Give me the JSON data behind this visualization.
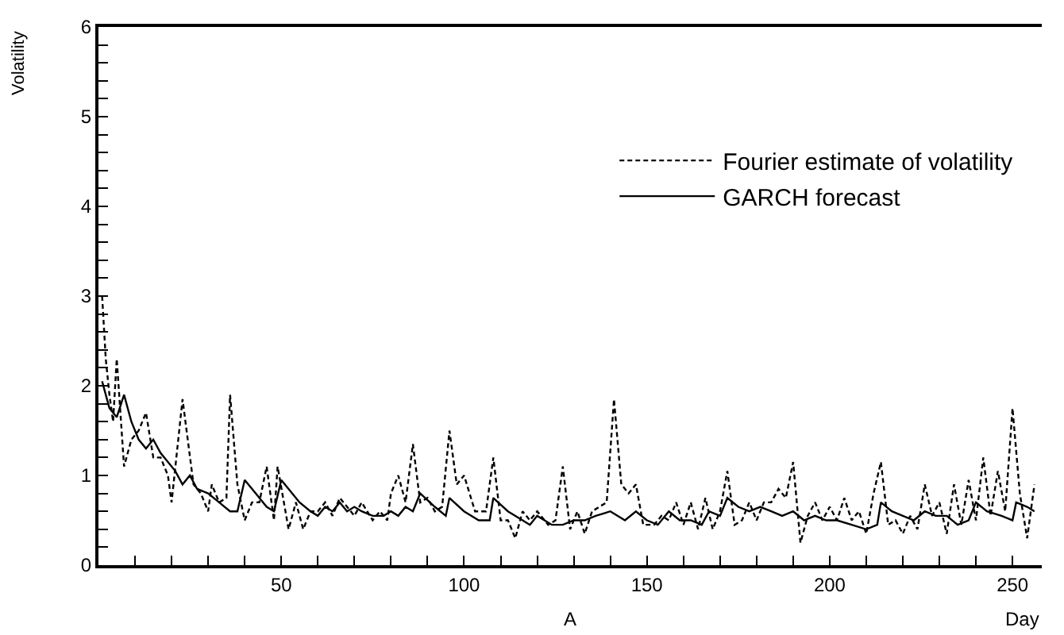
{
  "chart_data": {
    "type": "line",
    "xlabel": "Day",
    "ylabel": "Volatility",
    "annotations": [
      "A"
    ],
    "xlim": [
      0,
      258
    ],
    "ylim": [
      0,
      6
    ],
    "xticks": [
      {
        "value": 10,
        "label": null
      },
      {
        "value": 20,
        "label": null
      },
      {
        "value": 30,
        "label": null
      },
      {
        "value": 40,
        "label": null
      },
      50,
      {
        "value": 60,
        "label": null
      },
      {
        "value": 70,
        "label": null
      },
      {
        "value": 80,
        "label": null
      },
      {
        "value": 90,
        "label": null
      },
      100,
      {
        "value": 110,
        "label": null
      },
      {
        "value": 120,
        "label": null
      },
      {
        "value": 130,
        "label": null
      },
      {
        "value": 140,
        "label": null
      },
      150,
      {
        "value": 160,
        "label": null
      },
      {
        "value": 170,
        "label": null
      },
      {
        "value": 180,
        "label": null
      },
      {
        "value": 190,
        "label": null
      },
      200,
      {
        "value": 210,
        "label": null
      },
      {
        "value": 220,
        "label": null
      },
      {
        "value": 230,
        "label": null
      },
      {
        "value": 240,
        "label": null
      },
      250
    ],
    "yticks": [
      0,
      {
        "value": 0.2,
        "label": null
      },
      {
        "value": 0.4,
        "label": null
      },
      {
        "value": 0.6,
        "label": null
      },
      {
        "value": 0.8,
        "label": null
      },
      1,
      {
        "value": 1.2,
        "label": null
      },
      {
        "value": 1.4,
        "label": null
      },
      {
        "value": 1.6,
        "label": null
      },
      {
        "value": 1.8,
        "label": null
      },
      2,
      {
        "value": 2.2,
        "label": null
      },
      {
        "value": 2.4,
        "label": null
      },
      {
        "value": 2.6,
        "label": null
      },
      {
        "value": 2.8,
        "label": null
      },
      3,
      {
        "value": 3.2,
        "label": null
      },
      {
        "value": 3.4,
        "label": null
      },
      {
        "value": 3.6,
        "label": null
      },
      {
        "value": 3.8,
        "label": null
      },
      4,
      {
        "value": 4.2,
        "label": null
      },
      {
        "value": 4.4,
        "label": null
      },
      {
        "value": 4.6,
        "label": null
      },
      {
        "value": 4.8,
        "label": null
      },
      5,
      {
        "value": 5.2,
        "label": null
      },
      {
        "value": 5.4,
        "label": null
      },
      {
        "value": 5.6,
        "label": null
      },
      {
        "value": 5.8,
        "label": null
      },
      6
    ],
    "legend": "top right",
    "marker": "none",
    "series": [
      {
        "name": "Fourier estimate of volatility",
        "color": "#000000",
        "line_style": "dashed",
        "x": [
          1,
          2,
          3,
          4,
          5,
          7,
          9,
          11,
          13,
          15,
          17,
          19,
          20,
          23,
          26,
          28,
          30,
          31,
          33,
          35,
          36,
          38,
          40,
          42,
          44,
          46,
          48,
          49,
          52,
          54,
          56,
          58,
          60,
          62,
          64,
          66,
          68,
          70,
          72,
          75,
          77,
          79,
          80,
          82,
          84,
          86,
          88,
          90,
          92,
          94,
          96,
          98,
          100,
          103,
          106,
          108,
          110,
          112,
          114,
          116,
          118,
          120,
          123,
          125,
          127,
          129,
          131,
          133,
          135,
          137,
          139,
          141,
          143,
          145,
          147,
          149,
          152,
          154,
          156,
          158,
          160,
          162,
          164,
          166,
          168,
          170,
          172,
          174,
          176,
          178,
          180,
          182,
          184,
          186,
          188,
          190,
          192,
          194,
          196,
          198,
          200,
          202,
          204,
          206,
          208,
          210,
          212,
          214,
          216,
          218,
          220,
          222,
          224,
          226,
          228,
          230,
          232,
          234,
          236,
          238,
          240,
          242,
          244,
          246,
          248,
          250,
          252,
          254,
          256
        ],
        "values": [
          3.0,
          2.3,
          1.9,
          1.6,
          2.3,
          1.1,
          1.4,
          1.5,
          1.7,
          1.2,
          1.2,
          1.0,
          0.7,
          1.85,
          0.9,
          0.8,
          0.6,
          0.9,
          0.7,
          0.75,
          1.9,
          0.9,
          0.5,
          0.7,
          0.7,
          1.1,
          0.5,
          1.1,
          0.4,
          0.7,
          0.4,
          0.6,
          0.6,
          0.7,
          0.55,
          0.75,
          0.65,
          0.55,
          0.7,
          0.5,
          0.6,
          0.5,
          0.8,
          1.0,
          0.7,
          1.35,
          0.7,
          0.75,
          0.6,
          0.65,
          1.5,
          0.9,
          1.0,
          0.6,
          0.6,
          1.2,
          0.5,
          0.5,
          0.3,
          0.6,
          0.5,
          0.6,
          0.45,
          0.5,
          1.1,
          0.4,
          0.6,
          0.35,
          0.6,
          0.65,
          0.7,
          1.85,
          0.9,
          0.8,
          0.9,
          0.45,
          0.45,
          0.55,
          0.5,
          0.7,
          0.45,
          0.7,
          0.4,
          0.75,
          0.4,
          0.6,
          1.05,
          0.45,
          0.5,
          0.7,
          0.5,
          0.7,
          0.7,
          0.85,
          0.75,
          1.15,
          0.25,
          0.55,
          0.7,
          0.5,
          0.65,
          0.5,
          0.75,
          0.5,
          0.6,
          0.35,
          0.8,
          1.15,
          0.45,
          0.5,
          0.35,
          0.55,
          0.4,
          0.9,
          0.55,
          0.7,
          0.35,
          0.9,
          0.45,
          0.95,
          0.5,
          1.2,
          0.55,
          1.05,
          0.6,
          1.75,
          0.8,
          0.3,
          0.9
        ]
      },
      {
        "name": "GARCH forecast",
        "color": "#000000",
        "line_style": "solid",
        "x": [
          1,
          3,
          5,
          7,
          9,
          11,
          13,
          15,
          17,
          19,
          21,
          23,
          25,
          27,
          30,
          33,
          36,
          38,
          40,
          43,
          46,
          48,
          50,
          52,
          55,
          58,
          60,
          62,
          64,
          66,
          68,
          70,
          72,
          75,
          78,
          80,
          82,
          84,
          86,
          88,
          92,
          95,
          96,
          100,
          104,
          107,
          108,
          112,
          116,
          118,
          120,
          124,
          127,
          130,
          133,
          136,
          140,
          144,
          147,
          150,
          153,
          156,
          159,
          162,
          165,
          167,
          170,
          172,
          175,
          178,
          181,
          184,
          187,
          190,
          193,
          196,
          199,
          202,
          206,
          210,
          213,
          214,
          217,
          220,
          223,
          226,
          229,
          232,
          235,
          238,
          240,
          243,
          247,
          250,
          251,
          254,
          256
        ],
        "values": [
          2.05,
          1.75,
          1.65,
          1.9,
          1.6,
          1.4,
          1.3,
          1.4,
          1.25,
          1.15,
          1.05,
          0.9,
          1.0,
          0.85,
          0.8,
          0.7,
          0.6,
          0.6,
          0.95,
          0.8,
          0.65,
          0.6,
          0.95,
          0.85,
          0.7,
          0.6,
          0.55,
          0.65,
          0.6,
          0.7,
          0.6,
          0.65,
          0.6,
          0.55,
          0.55,
          0.6,
          0.55,
          0.65,
          0.6,
          0.8,
          0.65,
          0.55,
          0.75,
          0.6,
          0.5,
          0.5,
          0.75,
          0.6,
          0.5,
          0.45,
          0.55,
          0.45,
          0.45,
          0.5,
          0.5,
          0.55,
          0.6,
          0.5,
          0.6,
          0.5,
          0.45,
          0.6,
          0.5,
          0.5,
          0.45,
          0.6,
          0.55,
          0.75,
          0.65,
          0.6,
          0.65,
          0.6,
          0.55,
          0.6,
          0.5,
          0.55,
          0.5,
          0.5,
          0.45,
          0.4,
          0.45,
          0.7,
          0.6,
          0.55,
          0.5,
          0.6,
          0.55,
          0.55,
          0.45,
          0.5,
          0.7,
          0.6,
          0.55,
          0.5,
          0.7,
          0.65,
          0.6
        ]
      }
    ]
  }
}
